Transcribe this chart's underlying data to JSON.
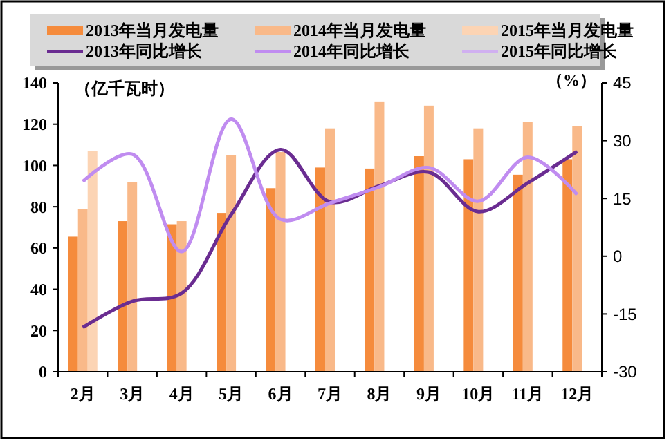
{
  "chart_data": {
    "type": "bar",
    "ylabel": "（亿千瓦时）",
    "y2label": "（%）",
    "categories": [
      "2月",
      "3月",
      "4月",
      "5月",
      "6月",
      "7月",
      "8月",
      "9月",
      "10月",
      "11月",
      "12月"
    ],
    "series": [
      {
        "name": "2013年当月发电量",
        "color": "#f58b3c",
        "values": [
          65.5,
          73,
          71.5,
          77,
          89,
          99,
          98.5,
          104.5,
          103,
          95.5,
          103
        ]
      },
      {
        "name": "2014年当月发电量",
        "color": "#f9b989",
        "values": [
          79,
          92,
          73,
          105,
          106.5,
          118,
          131,
          129,
          118,
          121,
          119
        ]
      },
      {
        "name": "2015年当月发电量",
        "color": "#fcd4b4",
        "values": [
          107,
          null,
          null,
          null,
          null,
          null,
          null,
          null,
          null,
          null,
          null
        ]
      },
      {
        "name": "2013年同比增长",
        "type": "line",
        "axis": "y2",
        "color": "#6a2c91",
        "values": [
          -18.5,
          -11.7,
          -9.6,
          10.8,
          27.7,
          14.1,
          18.3,
          21.8,
          11.6,
          19,
          27.2
        ]
      },
      {
        "name": "2014年同比增长",
        "type": "line",
        "axis": "y2",
        "color": "#c08cf0",
        "values": [
          19.4,
          26.5,
          1.2,
          35.6,
          9.6,
          13.8,
          18,
          23,
          14.3,
          25.7,
          16
        ]
      },
      {
        "name": "2015年同比增长",
        "type": "line",
        "axis": "y2",
        "color": "#d0b0f0",
        "values": [
          null,
          null,
          null,
          null,
          null,
          null,
          null,
          null,
          null,
          null,
          null
        ]
      }
    ],
    "ylim": [
      0,
      140
    ],
    "yticks": [
      0,
      20,
      40,
      60,
      80,
      100,
      120,
      140
    ],
    "y2lim": [
      -30,
      45
    ],
    "y2ticks": [
      -30,
      -15,
      0,
      15,
      30,
      45
    ],
    "legend": "top",
    "grid": false
  }
}
